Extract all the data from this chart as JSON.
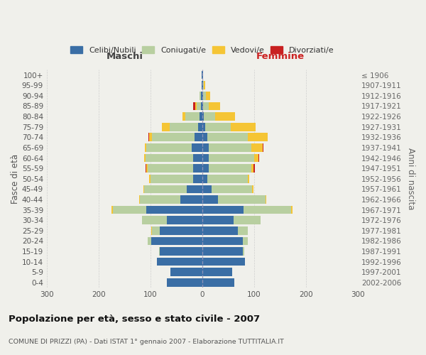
{
  "age_groups": [
    "0-4",
    "5-9",
    "10-14",
    "15-19",
    "20-24",
    "25-29",
    "30-34",
    "35-39",
    "40-44",
    "45-49",
    "50-54",
    "55-59",
    "60-64",
    "65-69",
    "70-74",
    "75-79",
    "80-84",
    "85-89",
    "90-94",
    "95-99",
    "100+"
  ],
  "birth_years": [
    "2002-2006",
    "1997-2001",
    "1992-1996",
    "1987-1991",
    "1982-1986",
    "1977-1981",
    "1972-1976",
    "1967-1971",
    "1962-1966",
    "1957-1961",
    "1952-1956",
    "1947-1951",
    "1942-1946",
    "1937-1941",
    "1932-1936",
    "1927-1931",
    "1922-1926",
    "1917-1921",
    "1912-1916",
    "1907-1911",
    "≤ 1906"
  ],
  "males": {
    "celibi": [
      68,
      62,
      88,
      82,
      98,
      82,
      68,
      108,
      42,
      30,
      18,
      18,
      18,
      20,
      15,
      8,
      5,
      3,
      2,
      1,
      1
    ],
    "coniugati": [
      0,
      0,
      0,
      2,
      8,
      15,
      48,
      65,
      78,
      82,
      82,
      88,
      92,
      88,
      82,
      55,
      28,
      8,
      3,
      0,
      0
    ],
    "vedovi": [
      0,
      0,
      0,
      0,
      0,
      2,
      0,
      2,
      2,
      2,
      2,
      2,
      2,
      3,
      5,
      15,
      5,
      2,
      0,
      0,
      0
    ],
    "divorziati": [
      0,
      0,
      0,
      0,
      0,
      0,
      0,
      0,
      0,
      0,
      0,
      2,
      0,
      0,
      2,
      0,
      0,
      5,
      0,
      0,
      0
    ]
  },
  "females": {
    "nubili": [
      62,
      58,
      82,
      78,
      78,
      68,
      60,
      80,
      30,
      18,
      10,
      12,
      12,
      12,
      10,
      5,
      3,
      2,
      2,
      1,
      1
    ],
    "coniugate": [
      0,
      0,
      0,
      3,
      10,
      20,
      52,
      92,
      92,
      78,
      78,
      82,
      88,
      82,
      78,
      50,
      22,
      10,
      5,
      2,
      0
    ],
    "vedove": [
      0,
      0,
      0,
      0,
      0,
      0,
      0,
      2,
      2,
      3,
      3,
      5,
      8,
      22,
      38,
      48,
      38,
      22,
      8,
      3,
      0
    ],
    "divorziate": [
      0,
      0,
      0,
      0,
      0,
      0,
      0,
      0,
      0,
      0,
      0,
      2,
      2,
      2,
      0,
      0,
      0,
      0,
      0,
      0,
      0
    ]
  },
  "colors": {
    "celibi_nubili": "#3a6ea5",
    "coniugati": "#b8cfa0",
    "vedovi": "#f5c535",
    "divorziati": "#c82020"
  },
  "title": "Popolazione per età, sesso e stato civile - 2007",
  "subtitle": "COMUNE DI PRIZZI (PA) - Dati ISTAT 1° gennaio 2007 - Elaborazione TUTTITALIA.IT",
  "xlabel_maschi": "Maschi",
  "xlabel_femmine": "Femmine",
  "ylabel_left": "Fasce di età",
  "ylabel_right": "Anni di nascita",
  "xlim": 300,
  "background_color": "#f0f0eb",
  "grid_color": "#cccccc",
  "legend_labels": [
    "Celibi/Nubili",
    "Coniugati/e",
    "Vedovi/e",
    "Divorziati/e"
  ]
}
